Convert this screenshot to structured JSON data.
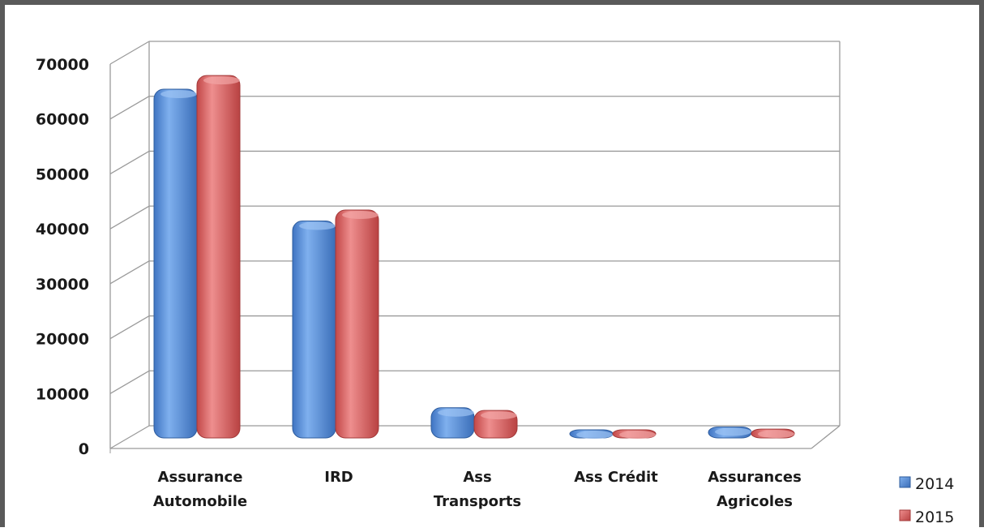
{
  "chart_data": {
    "type": "bar",
    "title": "",
    "xlabel": "",
    "ylabel": "",
    "categories": [
      [
        "Assurance",
        "Automobile"
      ],
      [
        "IRD"
      ],
      [
        "Ass",
        "Transports"
      ],
      [
        "Ass Crédit"
      ],
      [
        "Assurances",
        "Agricoles"
      ]
    ],
    "series": [
      {
        "name": "2014",
        "color": "#4a86d8",
        "values": [
          63500,
          39500,
          5500,
          300,
          2000
        ]
      },
      {
        "name": "2015",
        "color": "#d95c5c",
        "values": [
          66000,
          41500,
          5000,
          300,
          1600
        ]
      }
    ],
    "ylim": [
      0,
      70000
    ],
    "yticks": [
      0,
      10000,
      20000,
      30000,
      40000,
      50000,
      60000,
      70000
    ],
    "grid": true,
    "three_d": true,
    "legend_position": "bottom-right"
  }
}
